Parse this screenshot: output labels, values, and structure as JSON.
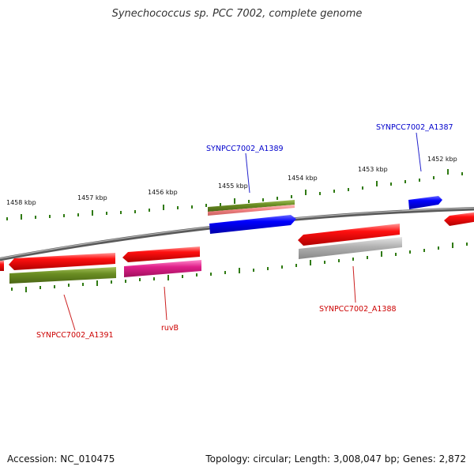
{
  "title": "Synechococcus sp. PCC 7002, complete genome",
  "footer": {
    "accession": "Accession: NC_010475",
    "summary": "Topology: circular; Length: 3,008,047 bp; Genes: 2,872"
  },
  "colors": {
    "backbone": "#707070",
    "tick": "#2f7a12",
    "red": "#ff0000",
    "olive": "#6b8e23",
    "blue": "#0000ff",
    "magenta": "#e0208a",
    "pink": "#f08080",
    "gray": "#a8a8a8",
    "label_red": "#cc0000",
    "label_blue": "#0000cc"
  },
  "kbp_labels": [
    "1458 kbp",
    "1457 kbp",
    "1456 kbp",
    "1455 kbp",
    "1454 kbp",
    "1453 kbp",
    "1452 kbp"
  ],
  "gene_labels": {
    "a1389": "SYNPCC7002_A1389",
    "a1387": "SYNPCC7002_A1387",
    "a1391": "SYNPCC7002_A1391",
    "ruvB": "ruvB",
    "a1388": "SYNPCC7002_A1388"
  }
}
